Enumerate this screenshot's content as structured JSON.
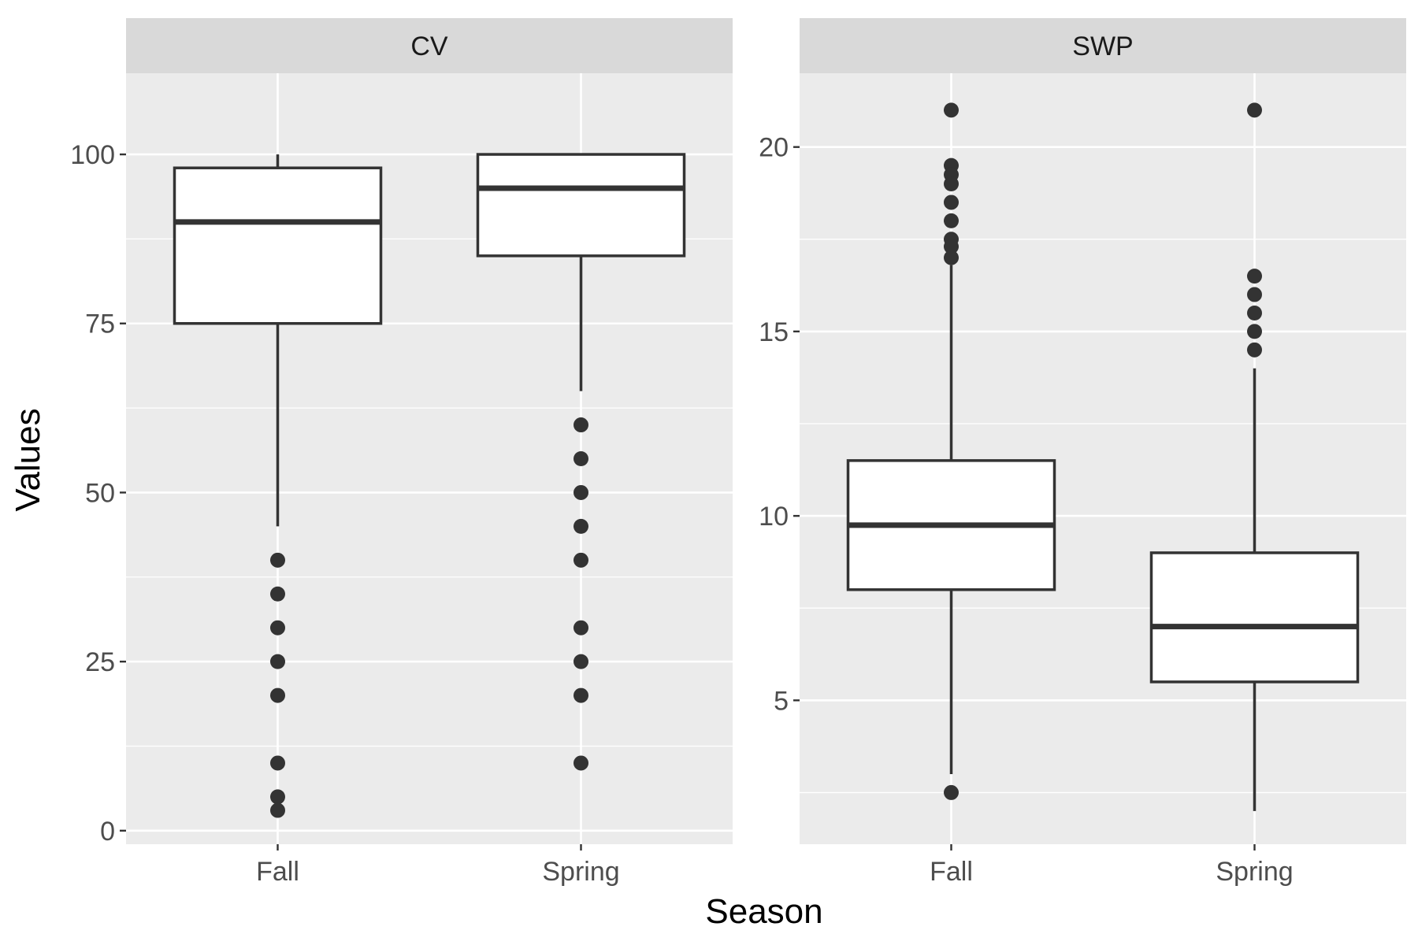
{
  "chart_data": {
    "type": "boxplot",
    "xlabel": "Season",
    "ylabel": "Values",
    "categories": [
      "Fall",
      "Spring"
    ],
    "grid": "on",
    "facets": [
      {
        "name": "CV",
        "ylim": [
          -2,
          112
        ],
        "yticks": [
          0,
          25,
          50,
          75,
          100
        ],
        "yticklabels": [
          "0",
          "25",
          "50",
          "75",
          "100"
        ],
        "boxes": [
          {
            "category": "Fall",
            "whisker_low": 45,
            "q1": 75,
            "median": 90,
            "q3": 98,
            "whisker_high": 100,
            "outliers": [
              40,
              35,
              30,
              25,
              20,
              10,
              5,
              3
            ]
          },
          {
            "category": "Spring",
            "whisker_low": 65,
            "q1": 85,
            "median": 95,
            "q3": 100,
            "whisker_high": 100,
            "outliers": [
              60,
              55,
              50,
              45,
              40,
              30,
              25,
              20,
              10
            ]
          }
        ]
      },
      {
        "name": "SWP",
        "ylim": [
          1.1,
          22.0
        ],
        "yticks": [
          5,
          10,
          15,
          20
        ],
        "yticklabels": [
          "5",
          "10",
          "15",
          "20"
        ],
        "boxes": [
          {
            "category": "Fall",
            "whisker_low": 3,
            "q1": 8,
            "median": 9.75,
            "q3": 11.5,
            "whisker_high": 16.8,
            "outliers": [
              21,
              19.5,
              19.25,
              19,
              18.5,
              18,
              17.5,
              17.3,
              17,
              2.5
            ]
          },
          {
            "category": "Spring",
            "whisker_low": 2,
            "q1": 5.5,
            "median": 7,
            "q3": 9,
            "whisker_high": 14,
            "outliers": [
              21,
              16.5,
              16,
              15.5,
              15,
              14.5
            ]
          }
        ]
      }
    ]
  }
}
